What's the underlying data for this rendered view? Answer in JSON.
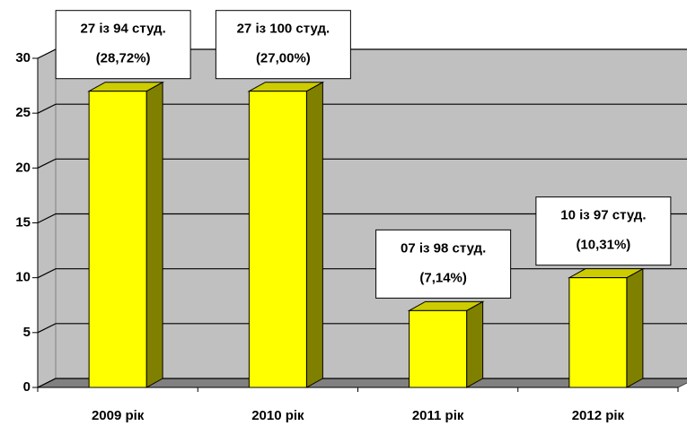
{
  "chart_data": {
    "type": "bar3d",
    "categories": [
      "2009 рік",
      "2010 рік",
      "2011 рік",
      "2012 рік"
    ],
    "values": [
      27,
      27,
      7,
      10
    ],
    "value_labels": [
      [
        "27 із 94 студ.",
        "(28,72%)"
      ],
      [
        "27 із 100 студ.",
        "(27,00%)"
      ],
      [
        "07 із 98 студ.",
        "(7,14%)"
      ],
      [
        "10 із 97 студ.",
        "(10,31%)"
      ]
    ],
    "color": "#ffff00",
    "ylim": [
      0,
      30
    ],
    "yticks": [
      0,
      5,
      10,
      15,
      20,
      25,
      30
    ],
    "grid": true
  }
}
